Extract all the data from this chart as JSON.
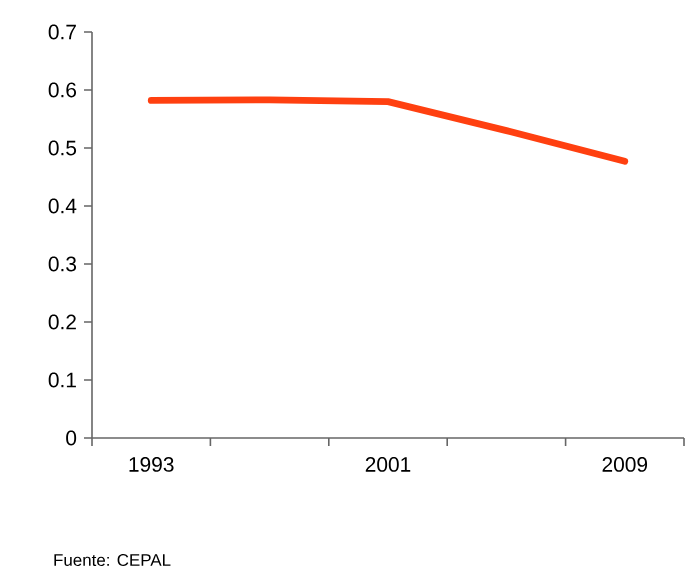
{
  "chart_data": {
    "type": "line",
    "categories": [
      "1993",
      null,
      "2001",
      null,
      "2009"
    ],
    "values": [
      0.582,
      0.583,
      0.58,
      0.53,
      0.477
    ],
    "color": "#ff4010",
    "ylim": [
      0,
      0.7
    ],
    "yticks": [
      0,
      0.1,
      0.2,
      0.3,
      0.4,
      0.5,
      0.6,
      0.7
    ],
    "annotations": [
      "Fuente: CEPAL"
    ]
  }
}
